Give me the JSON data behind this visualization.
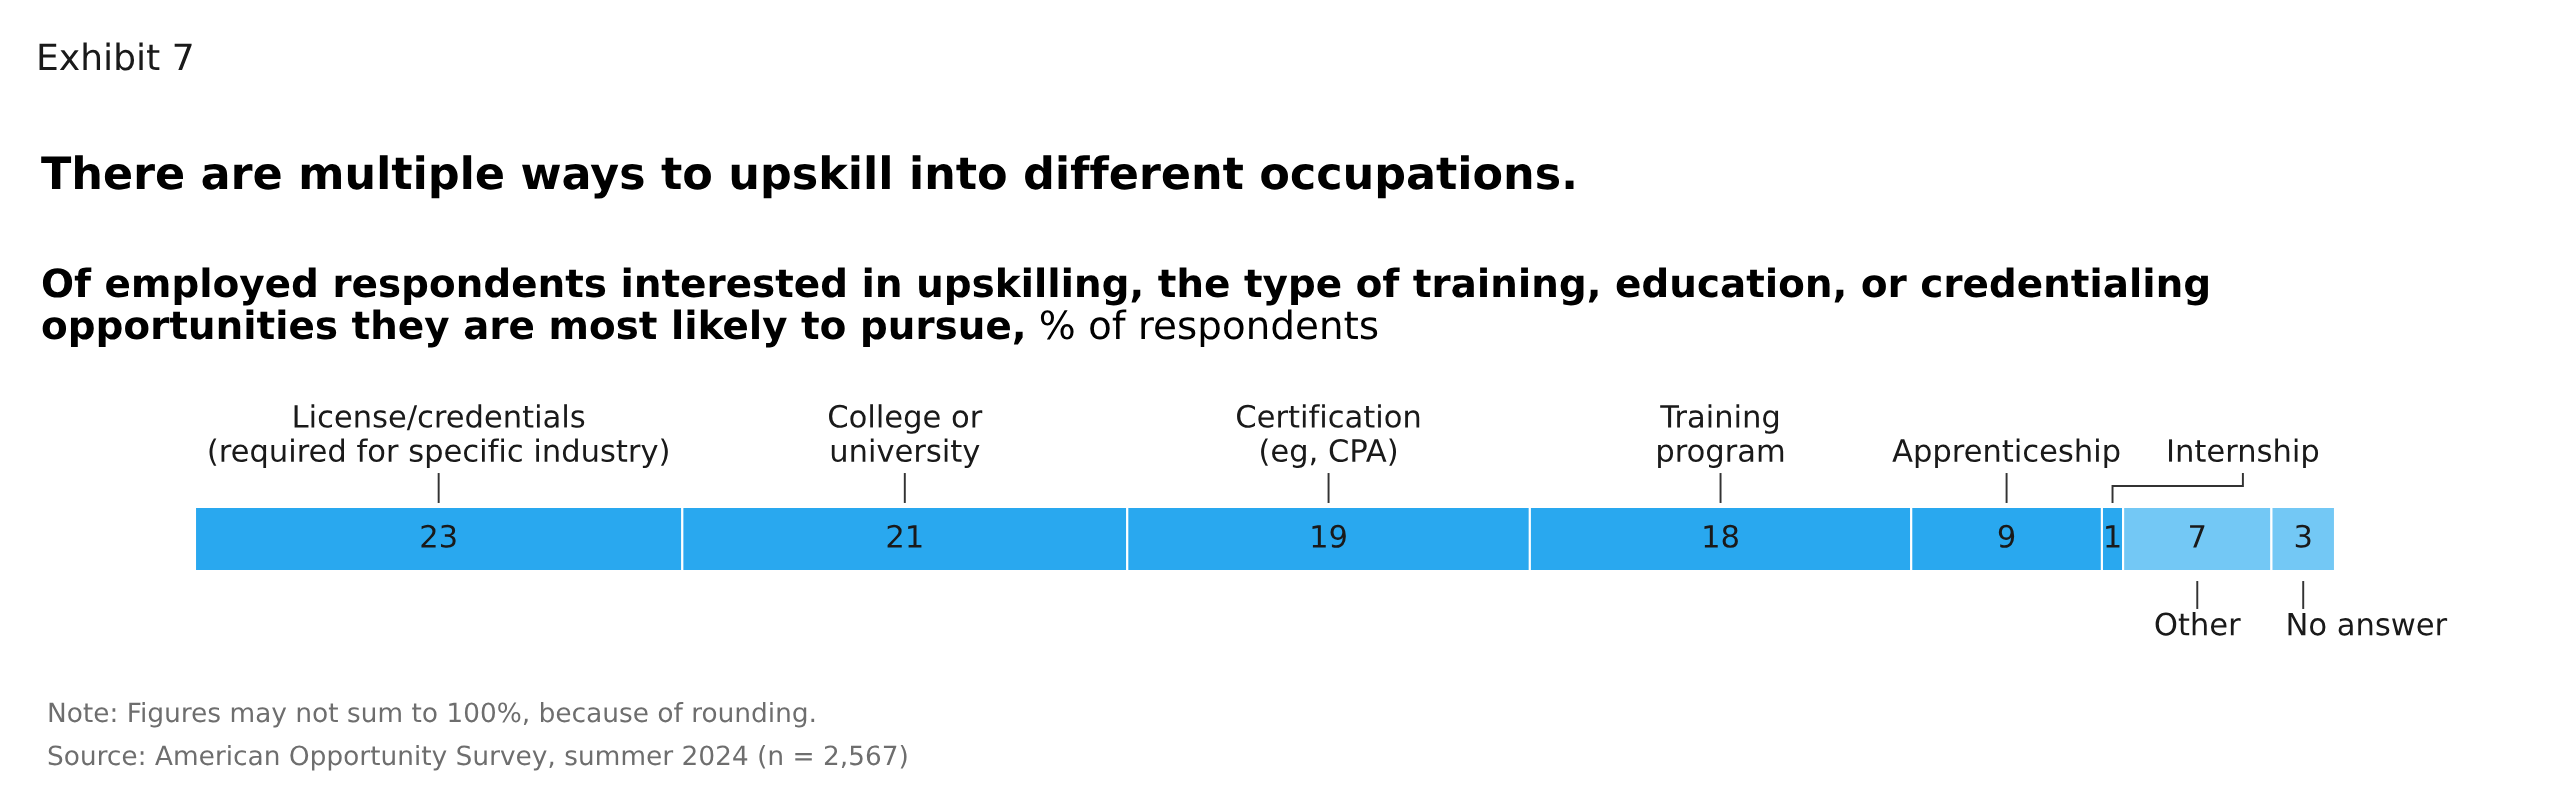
{
  "chart_data": {
    "type": "bar",
    "orientation": "horizontal",
    "stacked": true,
    "title": "There are multiple ways to upskill into different occupations.",
    "subtitle": "Of employed respondents interested in upskilling, the type of training, education, or credentialing\nopportunities they are most likely to pursue, % of respondents",
    "categories": [
      null
    ],
    "series": [
      {
        "name": "License/credentials\n(required for specific industry)",
        "color": "#29a8ef",
        "values": [
          23
        ]
      },
      {
        "name": "College or\nuniversity",
        "color": "#29a8ef",
        "values": [
          21
        ]
      },
      {
        "name": "Certification\n(eg, CPA)",
        "color": "#29a8ef",
        "values": [
          19
        ]
      },
      {
        "name": "Training\nprogram",
        "color": "#29a8ef",
        "values": [
          18
        ]
      },
      {
        "name": "Apprenticeship",
        "color": "#29a8ef",
        "values": [
          9
        ]
      },
      {
        "name": "Internship",
        "color": "#29a8ef",
        "values": [
          1
        ]
      },
      {
        "name": "Other",
        "color": "#73c8f5",
        "values": [
          7
        ]
      },
      {
        "name": "No answer",
        "color": "#73c8f5",
        "values": [
          3
        ]
      }
    ],
    "data_labels": true,
    "annotations": [
      "Exhibit 7",
      "Note: Figures may not sum to 100%, because of rounding.",
      "Source: American Opportunity Survey, summer 2024 (n = 2,567)"
    ]
  }
}
